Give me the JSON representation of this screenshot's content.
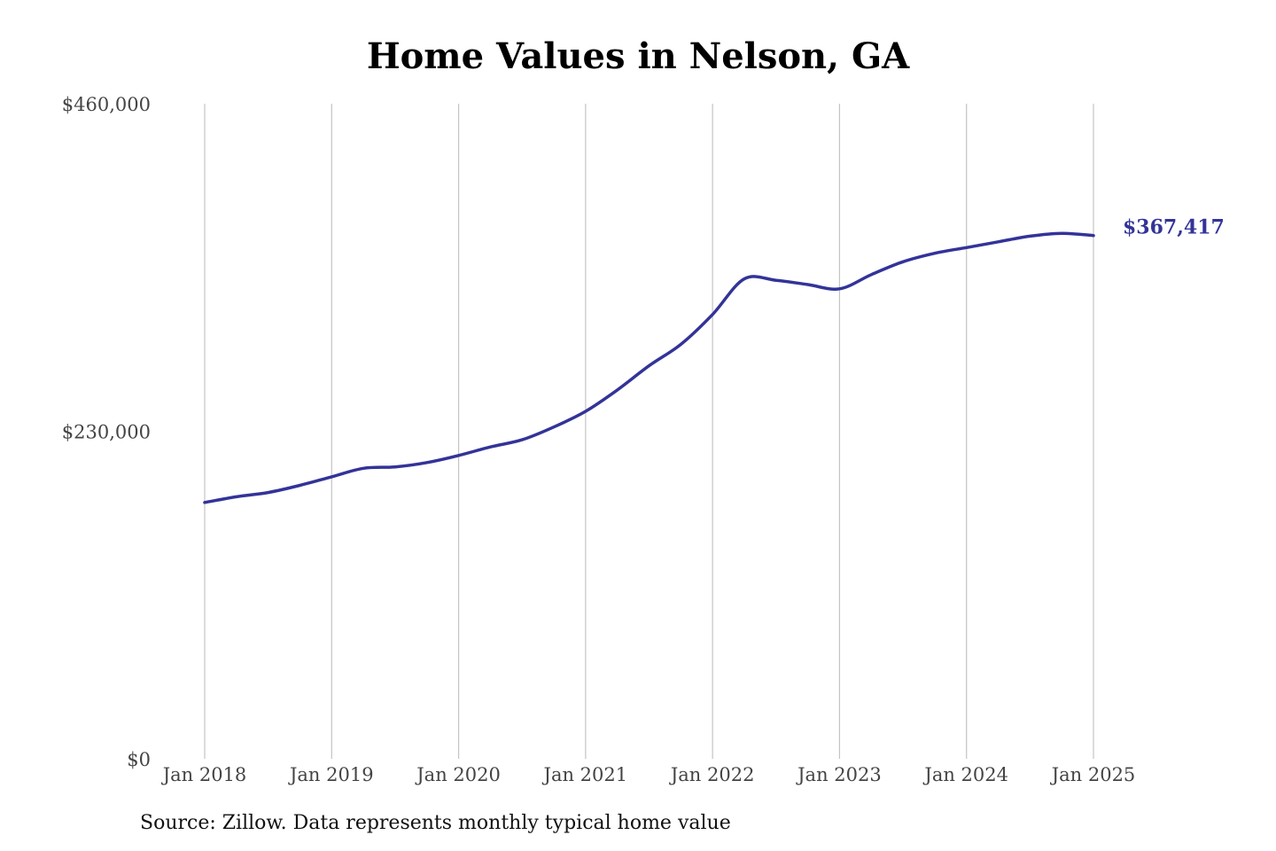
{
  "chart_data": {
    "type": "line",
    "title": "Home Values in Nelson, GA",
    "xlabel": "",
    "ylabel": "",
    "ylim": [
      0,
      460000
    ],
    "y_ticks": [
      {
        "value": 0,
        "label": "$0"
      },
      {
        "value": 230000,
        "label": "$230,000"
      },
      {
        "value": 460000,
        "label": "$460,000"
      }
    ],
    "x_range": [
      "2018-01",
      "2025-02"
    ],
    "x_ticks": [
      {
        "date": "2018-01",
        "label": "Jan 2018"
      },
      {
        "date": "2019-01",
        "label": "Jan 2019"
      },
      {
        "date": "2020-01",
        "label": "Jan 2020"
      },
      {
        "date": "2021-01",
        "label": "Jan 2021"
      },
      {
        "date": "2022-01",
        "label": "Jan 2022"
      },
      {
        "date": "2023-01",
        "label": "Jan 2023"
      },
      {
        "date": "2024-01",
        "label": "Jan 2024"
      },
      {
        "date": "2025-01",
        "label": "Jan 2025"
      }
    ],
    "grid": "vertical",
    "series": [
      {
        "color": "#333399",
        "end_label": "$367,417",
        "points": [
          {
            "x": "2018-01",
            "y": 180000
          },
          {
            "x": "2018-04",
            "y": 184000
          },
          {
            "x": "2018-07",
            "y": 187000
          },
          {
            "x": "2018-10",
            "y": 192000
          },
          {
            "x": "2019-01",
            "y": 198000
          },
          {
            "x": "2019-04",
            "y": 204000
          },
          {
            "x": "2019-07",
            "y": 205000
          },
          {
            "x": "2019-10",
            "y": 208000
          },
          {
            "x": "2020-01",
            "y": 213000
          },
          {
            "x": "2020-04",
            "y": 219000
          },
          {
            "x": "2020-07",
            "y": 224000
          },
          {
            "x": "2020-10",
            "y": 233000
          },
          {
            "x": "2021-01",
            "y": 244000
          },
          {
            "x": "2021-04",
            "y": 259000
          },
          {
            "x": "2021-07",
            "y": 276000
          },
          {
            "x": "2021-10",
            "y": 291000
          },
          {
            "x": "2022-01",
            "y": 312000
          },
          {
            "x": "2022-04",
            "y": 337000
          },
          {
            "x": "2022-07",
            "y": 336000
          },
          {
            "x": "2022-10",
            "y": 333000
          },
          {
            "x": "2023-01",
            "y": 330000
          },
          {
            "x": "2023-04",
            "y": 340000
          },
          {
            "x": "2023-07",
            "y": 349000
          },
          {
            "x": "2023-10",
            "y": 355000
          },
          {
            "x": "2024-01",
            "y": 359000
          },
          {
            "x": "2024-04",
            "y": 363000
          },
          {
            "x": "2024-07",
            "y": 367000
          },
          {
            "x": "2024-10",
            "y": 369000
          },
          {
            "x": "2025-01",
            "y": 367417
          }
        ]
      }
    ]
  },
  "source_note": "Source: Zillow. Data represents monthly typical home value"
}
